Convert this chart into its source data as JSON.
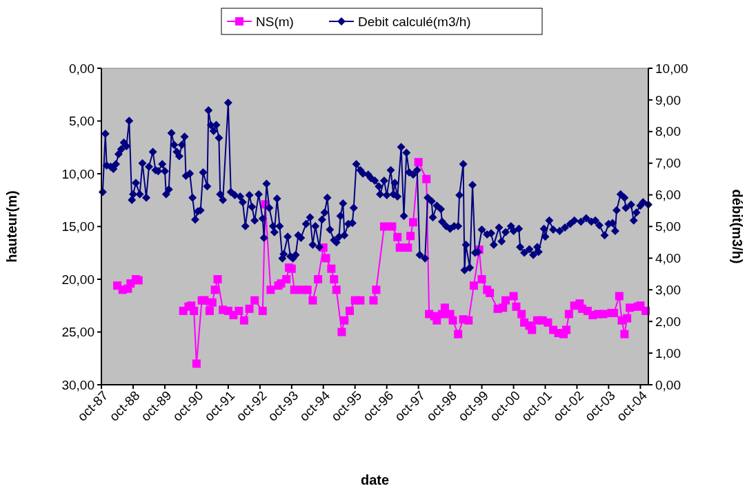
{
  "chart_data": {
    "type": "line",
    "xlabel": "date",
    "ylabel": "hauteur(m)",
    "y2label": "débit(m3/h)",
    "legend": "top",
    "grid": false,
    "line_style": "solid",
    "xlim": [
      "1987-10",
      "2005-01"
    ],
    "xticks": [
      {
        "value": "1987-10",
        "label": "oct-87"
      },
      {
        "value": "1988-10",
        "label": "oct-88"
      },
      {
        "value": "1989-10",
        "label": "oct-89"
      },
      {
        "value": "1990-10",
        "label": "oct-90"
      },
      {
        "value": "1991-10",
        "label": "oct-91"
      },
      {
        "value": "1992-10",
        "label": "oct-92"
      },
      {
        "value": "1993-10",
        "label": "oct-93"
      },
      {
        "value": "1994-10",
        "label": "oct-94"
      },
      {
        "value": "1995-10",
        "label": "oct-95"
      },
      {
        "value": "1996-10",
        "label": "oct-96"
      },
      {
        "value": "1997-10",
        "label": "oct-97"
      },
      {
        "value": "1998-10",
        "label": "oct-98"
      },
      {
        "value": "1999-10",
        "label": "oct-99"
      },
      {
        "value": "2000-10",
        "label": "oct-00"
      },
      {
        "value": "2001-10",
        "label": "oct-01"
      },
      {
        "value": "2002-10",
        "label": "oct-02"
      },
      {
        "value": "2003-10",
        "label": "oct-03"
      },
      {
        "value": "2004-10",
        "label": "oct-04"
      }
    ],
    "ylim": [
      30,
      0
    ],
    "yticks": [
      {
        "value": 0,
        "label": "0,00"
      },
      {
        "value": 5,
        "label": "5,00"
      },
      {
        "value": 10,
        "label": "10,00"
      },
      {
        "value": 15,
        "label": "15,00"
      },
      {
        "value": 20,
        "label": "20,00"
      },
      {
        "value": 25,
        "label": "25,00"
      },
      {
        "value": 30,
        "label": "30,00"
      }
    ],
    "y2lim": [
      0,
      10
    ],
    "y2ticks": [
      {
        "value": 0,
        "label": "0,00"
      },
      {
        "value": 1,
        "label": "1,00"
      },
      {
        "value": 2,
        "label": "2,00"
      },
      {
        "value": 3,
        "label": "3,00"
      },
      {
        "value": 4,
        "label": "4,00"
      },
      {
        "value": 5,
        "label": "5,00"
      },
      {
        "value": 6,
        "label": "6,00"
      },
      {
        "value": 7,
        "label": "7,00"
      },
      {
        "value": 8,
        "label": "8,00"
      },
      {
        "value": 9,
        "label": "9,00"
      },
      {
        "value": 10,
        "label": "10,00"
      }
    ],
    "series": [
      {
        "name": "NS(m)",
        "color": "#ff00ff",
        "marker": "square",
        "x": [
          "1988-04",
          "1988-06",
          "1988-08",
          "1988-09",
          "1988-11",
          "1988-12",
          "1989-07",
          "1990-05",
          "1990-07",
          "1990-08",
          "1990-09",
          "1990-10",
          "1990-12",
          "1991-01",
          "1991-03",
          "1991-04",
          "1991-05",
          "1991-06",
          "1991-08",
          "1991-10",
          "1991-12",
          "1992-02",
          "1992-04",
          "1992-06",
          "1992-08",
          "1992-11",
          "1992-12",
          "1993-02",
          "1993-05",
          "1993-06",
          "1993-08",
          "1993-09",
          "1993-10",
          "1993-11",
          "1994-02",
          "1994-04",
          "1994-06",
          "1994-08",
          "1994-10",
          "1994-11",
          "1995-01",
          "1995-02",
          "1995-03",
          "1995-05",
          "1995-06",
          "1995-08",
          "1995-10",
          "1995-12",
          "1996-02",
          "1996-05",
          "1996-06",
          "1996-09",
          "1996-12",
          "1997-02",
          "1997-03",
          "1997-06",
          "1997-07",
          "1997-08",
          "1997-10",
          "1998-01",
          "1998-02",
          "1998-04",
          "1998-05",
          "1998-07",
          "1998-08",
          "1998-10",
          "1998-11",
          "1999-01",
          "1999-03",
          "1999-05",
          "1999-07",
          "1999-09",
          "1999-10",
          "1999-12",
          "2000-01",
          "2000-04",
          "2000-06",
          "2000-07",
          "2000-10",
          "2000-11",
          "2001-01",
          "2001-02",
          "2001-04",
          "2001-05",
          "2001-07",
          "2001-09",
          "2001-11",
          "2002-01",
          "2002-03",
          "2002-05",
          "2002-06",
          "2002-07",
          "2002-09",
          "2002-11",
          "2002-12",
          "2003-02",
          "2003-04",
          "2003-06",
          "2003-08",
          "2003-11",
          "2003-12",
          "2004-02",
          "2004-03",
          "2004-04",
          "2004-05",
          "2004-06",
          "2004-09",
          "2004-10",
          "2004-12"
        ],
        "values": [
          20.6,
          21.0,
          20.9,
          20.4,
          20.0,
          20.1,
          null,
          23.0,
          22.6,
          22.5,
          23.0,
          28.0,
          22.0,
          22.0,
          23.0,
          22.2,
          21.0,
          20.0,
          22.9,
          23.0,
          23.4,
          23.0,
          23.9,
          22.8,
          22.0,
          23.0,
          12.9,
          21.0,
          20.6,
          20.4,
          20.0,
          18.9,
          19.0,
          21.0,
          21.0,
          21.0,
          22.0,
          20.0,
          17.0,
          18.0,
          19.0,
          20.0,
          21.0,
          25.0,
          23.9,
          23.0,
          22.0,
          22.0,
          null,
          22.0,
          21.0,
          15.0,
          15.0,
          16.0,
          17.0,
          17.0,
          15.9,
          14.6,
          8.9,
          10.5,
          23.3,
          23.5,
          23.9,
          23.3,
          22.7,
          23.3,
          23.9,
          25.2,
          23.8,
          23.9,
          20.6,
          17.2,
          20.0,
          21.0,
          21.3,
          22.8,
          22.7,
          22.0,
          21.6,
          22.6,
          23.3,
          24.1,
          24.4,
          24.8,
          23.9,
          23.9,
          24.1,
          24.8,
          25.1,
          25.2,
          24.8,
          23.3,
          22.5,
          22.3,
          22.8,
          23.0,
          23.4,
          23.3,
          23.3,
          23.2,
          23.2,
          21.6,
          23.9,
          25.2,
          23.7,
          22.7,
          22.6,
          22.5,
          23.0
        ]
      },
      {
        "name": "Debit calculé(m3/h)",
        "color": "#000080",
        "marker": "diamond",
        "axis": "y2",
        "x": [
          "1987-10-16",
          "1987-11-16",
          "1987-12-01",
          "1988-01-16",
          "1988-02-16",
          "1988-03-16",
          "1988-04-16",
          "1988-05-16",
          "1988-06-16",
          "1988-07-16",
          "1988-08-16",
          "1988-09-16",
          "1988-10-01",
          "1988-11-01",
          "1988-12-16",
          "1989-01-16",
          "1989-03-01",
          "1989-04-01",
          "1989-05-16",
          "1989-06-16",
          "1989-07-16",
          "1989-09-01",
          "1989-10-01",
          "1989-10-16",
          "1989-11-16",
          "1989-12-16",
          "1990-01-16",
          "1990-02-16",
          "1990-03-16",
          "1990-04-16",
          "1990-05-16",
          "1990-06-01",
          "1990-07-16",
          "1990-08-16",
          "1990-09-16",
          "1990-10-16",
          "1990-11-16",
          "1990-12-16",
          "1991-02-01",
          "1991-02-16",
          "1991-03-16",
          "1991-04-16",
          "1991-05-16",
          "1991-06-16",
          "1991-07-01",
          "1991-08-01",
          "1991-10-01",
          "1991-11-01",
          "1991-12-16",
          "1992-02-16",
          "1992-03-16",
          "1992-04-16",
          "1992-06-01",
          "1992-07-01",
          "1992-08-01",
          "1992-09-16",
          "1992-11-01",
          "1992-11-16",
          "1992-12-16",
          "1993-01-16",
          "1993-03-01",
          "1993-03-16",
          "1993-04-16",
          "1993-05-16",
          "1993-06-16",
          "1993-07-01",
          "1993-08-16",
          "1993-09-16",
          "1993-10-16",
          "1993-11-16",
          "1993-12-16",
          "1994-01-16",
          "1994-03-16",
          "1994-05-01",
          "1994-06-01",
          "1994-07-01",
          "1994-08-16",
          "1994-09-16",
          "1994-10-16",
          "1994-11-16",
          "1994-12-16",
          "1995-02-01",
          "1995-03-01",
          "1995-04-01",
          "1995-04-16",
          "1995-05-16",
          "1995-06-01",
          "1995-07-16",
          "1995-09-01",
          "1995-09-16",
          "1995-10-16",
          "1995-12-01",
          "1996-01-01",
          "1996-03-01",
          "1996-04-01",
          "1996-05-16",
          "1996-07-01",
          "1996-07-16",
          "1996-09-01",
          "1996-10-01",
          "1996-11-16",
          "1996-12-16",
          "1997-01-01",
          "1997-02-01",
          "1997-03-16",
          "1997-04-16",
          "1997-05-16",
          "1997-06-16",
          "1997-08-01",
          "1997-09-16",
          "1997-10-16",
          "1997-12-16",
          "1998-01-16",
          "1998-03-01",
          "1998-03-16",
          "1998-05-01",
          "1998-06-16",
          "1998-07-01",
          "1998-08-16",
          "1998-10-01",
          "1998-11-16",
          "1999-01-01",
          "1999-01-16",
          "1999-03-01",
          "1999-03-16",
          "1999-04-01",
          "1999-05-16",
          "1999-06-16",
          "1999-07-16",
          "1999-08-16",
          "1999-10-01",
          "1999-12-01",
          "2000-01-16",
          "2000-02-16",
          "2000-04-16",
          "2000-05-16",
          "2000-07-01",
          "2000-09-01",
          "2000-10-01",
          "2000-12-01",
          "2000-12-16",
          "2001-02-01",
          "2001-04-01",
          "2001-05-16",
          "2001-07-01",
          "2001-07-16",
          "2001-09-16",
          "2001-10-01",
          "2001-11-16",
          "2002-01-01",
          "2002-03-16",
          "2002-05-16",
          "2002-07-16",
          "2002-09-01",
          "2002-11-16",
          "2003-01-16",
          "2003-03-16",
          "2003-05-01",
          "2003-06-16",
          "2003-08-16",
          "2003-10-01",
          "2003-11-16",
          "2003-12-16",
          "2004-01-01",
          "2004-02-16",
          "2004-04-01",
          "2004-04-16",
          "2004-06-16",
          "2004-07-16",
          "2004-08-16",
          "2004-10-01",
          "2004-11-01",
          "2005-01-01"
        ],
        "values": [
          6.09,
          7.93,
          6.93,
          6.89,
          6.82,
          6.97,
          7.29,
          7.44,
          7.65,
          7.54,
          8.34,
          5.84,
          6.02,
          6.38,
          6.02,
          7.0,
          5.91,
          6.89,
          7.36,
          6.78,
          6.75,
          6.97,
          6.75,
          6.02,
          6.17,
          7.95,
          7.58,
          7.36,
          7.22,
          7.58,
          7.84,
          6.6,
          6.67,
          5.91,
          5.22,
          5.48,
          5.51,
          6.71,
          6.27,
          8.67,
          8.2,
          8.02,
          8.21,
          7.8,
          6.02,
          5.84,
          8.91,
          6.09,
          5.99,
          5.95,
          5.77,
          5.01,
          5.99,
          5.62,
          5.19,
          6.02,
          5.25,
          4.64,
          6.35,
          5.59,
          5.01,
          4.82,
          5.88,
          5.01,
          3.99,
          4.13,
          4.68,
          4.06,
          3.99,
          4.1,
          4.72,
          4.64,
          5.08,
          5.29,
          4.42,
          5.01,
          4.35,
          5.22,
          5.44,
          5.91,
          4.9,
          4.57,
          4.5,
          4.68,
          5.33,
          5.73,
          4.72,
          5.08,
          5.11,
          5.59,
          6.97,
          6.78,
          6.67,
          6.64,
          6.53,
          6.45,
          6.27,
          6.02,
          6.45,
          5.99,
          6.78,
          6.02,
          6.38,
          5.95,
          7.51,
          5.33,
          7.33,
          6.71,
          6.64,
          6.78,
          4.1,
          3.99,
          5.91,
          5.8,
          5.29,
          5.66,
          5.55,
          5.15,
          5.01,
          4.93,
          5.01,
          5.01,
          5.99,
          6.97,
          3.62,
          4.42,
          3.7,
          6.31,
          4.17,
          4.2,
          4.9,
          4.75,
          4.79,
          4.42,
          4.97,
          4.53,
          4.82,
          5.01,
          4.86,
          4.93,
          4.35,
          4.17,
          4.28,
          4.1,
          4.35,
          4.2,
          4.93,
          4.68,
          5.19,
          4.9,
          4.86,
          4.97,
          5.08,
          5.19,
          5.15,
          5.26,
          5.15,
          5.19,
          5.04,
          4.72,
          5.08,
          5.11,
          4.86,
          5.51,
          6.02,
          5.91,
          5.59,
          5.69,
          5.19,
          5.44,
          5.66,
          5.77,
          5.69
        ]
      }
    ]
  }
}
